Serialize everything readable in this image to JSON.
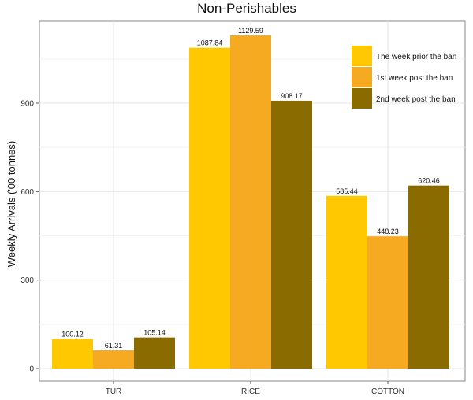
{
  "chart_data": {
    "type": "bar",
    "title": "Non-Perishables",
    "xlabel": "",
    "ylabel": "Weekly Arrivals ('00 tonnes)",
    "categories": [
      "TUR",
      "RICE",
      "COTTON"
    ],
    "series": [
      {
        "name": "The week prior the ban",
        "color": "#FFC800",
        "values": [
          100.12,
          1087.84,
          585.44
        ]
      },
      {
        "name": "1st week post the ban",
        "color": "#F5AA22",
        "values": [
          61.31,
          1129.59,
          448.23
        ]
      },
      {
        "name": "2nd week post the ban",
        "color": "#8A6B00",
        "values": [
          105.14,
          908.17,
          620.46
        ]
      }
    ],
    "yticks": [
      0,
      300,
      600,
      900
    ],
    "ylim": [
      0,
      1160
    ],
    "grid": true,
    "legend_position": "top-right"
  }
}
